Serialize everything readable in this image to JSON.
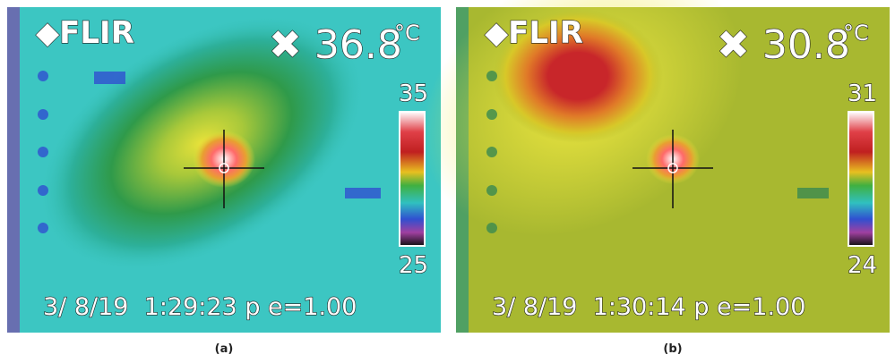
{
  "panels": [
    {
      "brand": "◆FLIR",
      "temperature": "✖ 36.8",
      "unit": "°C",
      "scale_max": "35",
      "scale_min": "25",
      "timestamp": "3/ 8/19  1:29:23 p e=1.00",
      "caption": "(a)"
    },
    {
      "brand": "◆FLIR",
      "temperature": "✖ 30.8",
      "unit": "°C",
      "scale_max": "31",
      "scale_min": "24",
      "timestamp": "3/ 8/19  1:30:14 p e=1.00",
      "caption": "(b)"
    }
  ]
}
